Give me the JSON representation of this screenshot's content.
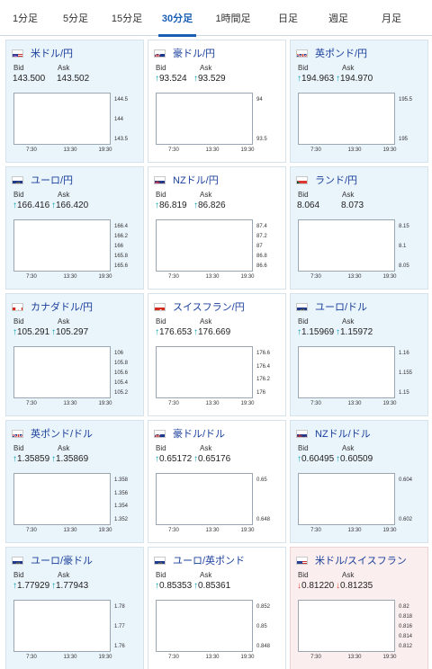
{
  "tabs": [
    {
      "label": "1分足",
      "active": false
    },
    {
      "label": "5分足",
      "active": false
    },
    {
      "label": "15分足",
      "active": false
    },
    {
      "label": "30分足",
      "active": true
    },
    {
      "label": "1時間足",
      "active": false
    },
    {
      "label": "日足",
      "active": false
    },
    {
      "label": "週足",
      "active": false
    },
    {
      "label": "月足",
      "active": false
    }
  ],
  "labels": {
    "bid": "Bid",
    "ask": "Ask"
  },
  "colors": {
    "up": "#e60012",
    "down": "#1c2f8f",
    "ma": "#d55fd5",
    "arrow_up": "#00a0b4",
    "arrow_down": "#e0483c",
    "pair_text": "#1a3f9c",
    "active_tab": "#1b5fb5"
  },
  "cards": [
    {
      "pair": "米ドル/円",
      "flag": "us",
      "bg": "blue",
      "arrow": "",
      "bid": "143.500",
      "ask": "143.502",
      "yticks": [
        "144.5",
        "144",
        "143.5"
      ],
      "xticks": [
        "7:30",
        "13:30",
        "19:30"
      ],
      "trend": "down"
    },
    {
      "pair": "豪ドル/円",
      "flag": "au",
      "bg": "white",
      "arrow": "up",
      "bid": "93.524",
      "ask": "93.529",
      "yticks": [
        "94",
        "93.5"
      ],
      "xticks": [
        "7:30",
        "13:30",
        "19:30"
      ],
      "trend": "down"
    },
    {
      "pair": "英ポンド/円",
      "flag": "gb",
      "bg": "blue",
      "arrow": "up",
      "bid": "194.963",
      "ask": "194.970",
      "yticks": [
        "195.5",
        "195"
      ],
      "xticks": [
        "7:30",
        "13:30",
        "19:30"
      ],
      "trend": "down"
    },
    {
      "pair": "ユーロ/円",
      "flag": "eu",
      "bg": "blue",
      "arrow": "up",
      "bid": "166.416",
      "ask": "166.420",
      "yticks": [
        "166.4",
        "166.2",
        "166",
        "165.8",
        "165.6"
      ],
      "xticks": [
        "7:30",
        "13:30",
        "19:30"
      ],
      "trend": "vup"
    },
    {
      "pair": "NZドル/円",
      "flag": "nz",
      "bg": "white",
      "arrow": "up",
      "bid": "86.819",
      "ask": "86.826",
      "yticks": [
        "87.4",
        "87.2",
        "87",
        "86.8",
        "86.6"
      ],
      "xticks": [
        "7:30",
        "13:30",
        "19:30"
      ],
      "trend": "down"
    },
    {
      "pair": "ランド/円",
      "flag": "za",
      "bg": "blue",
      "arrow": "",
      "bid": "8.064",
      "ask": "8.073",
      "yticks": [
        "8.15",
        "8.1",
        "8.05"
      ],
      "xticks": [
        "7:30",
        "13:30",
        "19:30"
      ],
      "trend": "downend"
    },
    {
      "pair": "カナダドル/円",
      "flag": "ca",
      "bg": "blue",
      "arrow": "up",
      "bid": "105.291",
      "ask": "105.297",
      "yticks": [
        "106",
        "105.8",
        "105.6",
        "105.4",
        "105.2"
      ],
      "xticks": [
        "7:30",
        "13:30",
        "19:30"
      ],
      "trend": "down"
    },
    {
      "pair": "スイスフラン/円",
      "flag": "ch",
      "bg": "white",
      "arrow": "up",
      "bid": "176.653",
      "ask": "176.669",
      "yticks": [
        "176.6",
        "176.4",
        "176.2",
        "176"
      ],
      "xticks": [
        "7:30",
        "13:30",
        "19:30"
      ],
      "trend": "vup"
    },
    {
      "pair": "ユーロ/ドル",
      "flag": "eu-us",
      "bg": "blue",
      "arrow": "up",
      "bid": "1.15969",
      "ask": "1.15972",
      "yticks": [
        "1.16",
        "1.155",
        "1.15"
      ],
      "xticks": [
        "7:30",
        "13:30",
        "19:30"
      ],
      "trend": "up"
    },
    {
      "pair": "英ポンド/ドル",
      "flag": "gb-us",
      "bg": "blue",
      "arrow": "up",
      "bid": "1.35859",
      "ask": "1.35869",
      "yticks": [
        "1.358",
        "1.356",
        "1.354",
        "1.352"
      ],
      "xticks": [
        "7:30",
        "13:30",
        "19:30"
      ],
      "trend": "upvar"
    },
    {
      "pair": "豪ドル/ドル",
      "flag": "au-us",
      "bg": "white",
      "arrow": "up",
      "bid": "0.65172",
      "ask": "0.65176",
      "yticks": [
        "0.65",
        "0.648"
      ],
      "xticks": [
        "7:30",
        "13:30",
        "19:30"
      ],
      "trend": "flat"
    },
    {
      "pair": "NZドル/ドル",
      "flag": "nz-us",
      "bg": "blue",
      "arrow": "up",
      "bid": "0.60495",
      "ask": "0.60509",
      "yticks": [
        "0.604",
        "0.602"
      ],
      "xticks": [
        "7:30",
        "13:30",
        "19:30"
      ],
      "trend": "flatup"
    },
    {
      "pair": "ユーロ/豪ドル",
      "flag": "eu-au",
      "bg": "blue",
      "arrow": "up",
      "bid": "1.77929",
      "ask": "1.77943",
      "yticks": [
        "1.78",
        "1.77",
        "1.76"
      ],
      "xticks": [
        "7:30",
        "13:30",
        "19:30"
      ],
      "trend": "up"
    },
    {
      "pair": "ユーロ/英ポンド",
      "flag": "eu-gb",
      "bg": "white",
      "arrow": "up",
      "bid": "0.85353",
      "ask": "0.85361",
      "yticks": [
        "0.852",
        "0.85",
        "0.848"
      ],
      "xticks": [
        "7:30",
        "13:30",
        "19:30"
      ],
      "trend": "upend"
    },
    {
      "pair": "米ドル/スイスフラン",
      "flag": "us-ch",
      "bg": "red",
      "arrow": "down",
      "bid": "0.81220",
      "ask": "0.81235",
      "yticks": [
        "0.82",
        "0.818",
        "0.816",
        "0.814",
        "0.812"
      ],
      "xticks": [
        "7:30",
        "13:30",
        "19:30"
      ],
      "trend": "down"
    }
  ]
}
